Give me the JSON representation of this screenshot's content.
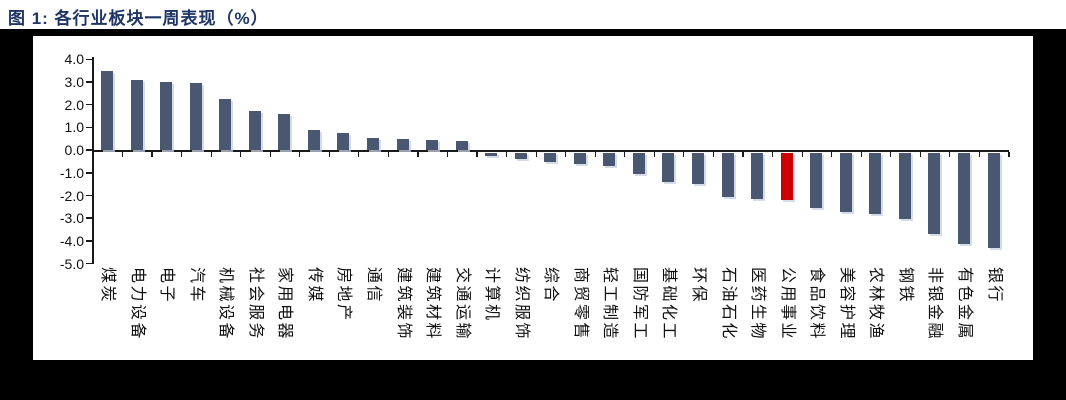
{
  "title": "图 1: 各行业板块一周表现（%）",
  "colors": {
    "bar": "#4A5770",
    "highlight": "#CC0000",
    "frame": "#000000",
    "title_text": "#1E3566",
    "axis": "#1a1a1a"
  },
  "chart_data": {
    "type": "bar",
    "title": "图 1: 各行业板块一周表现（%）",
    "xlabel": "",
    "ylabel": "",
    "ylim": [
      -5.0,
      4.0
    ],
    "grid": false,
    "legend": "none",
    "yticks": [
      "4.0",
      "3.0",
      "2.0",
      "1.0",
      "0.0",
      "-1.0",
      "-2.0",
      "-3.0",
      "-4.0",
      "-5.0"
    ],
    "categories": [
      "煤炭",
      "电力设备",
      "电子",
      "汽车",
      "机械设备",
      "社会服务",
      "家用电器",
      "传媒",
      "房地产",
      "通信",
      "建筑装饰",
      "建筑材料",
      "交通运输",
      "计算机",
      "纺织服饰",
      "综合",
      "商贸零售",
      "轻工制造",
      "国防军工",
      "基础化工",
      "环保",
      "石油石化",
      "医药生物",
      "公用事业",
      "食品饮料",
      "美容护理",
      "农林牧渔",
      "钢铁",
      "非银金融",
      "有色金属",
      "银行"
    ],
    "values": [
      3.5,
      3.1,
      3.0,
      2.95,
      2.25,
      1.7,
      1.6,
      0.9,
      0.75,
      0.55,
      0.5,
      0.45,
      0.4,
      -0.15,
      -0.3,
      -0.4,
      -0.5,
      -0.6,
      -0.95,
      -1.3,
      -1.4,
      -1.95,
      -2.05,
      -2.1,
      -2.45,
      -2.6,
      -2.7,
      -2.95,
      -3.6,
      -4.05,
      -4.2
    ],
    "highlight_index": 23,
    "highlight_category": "公用事业"
  }
}
